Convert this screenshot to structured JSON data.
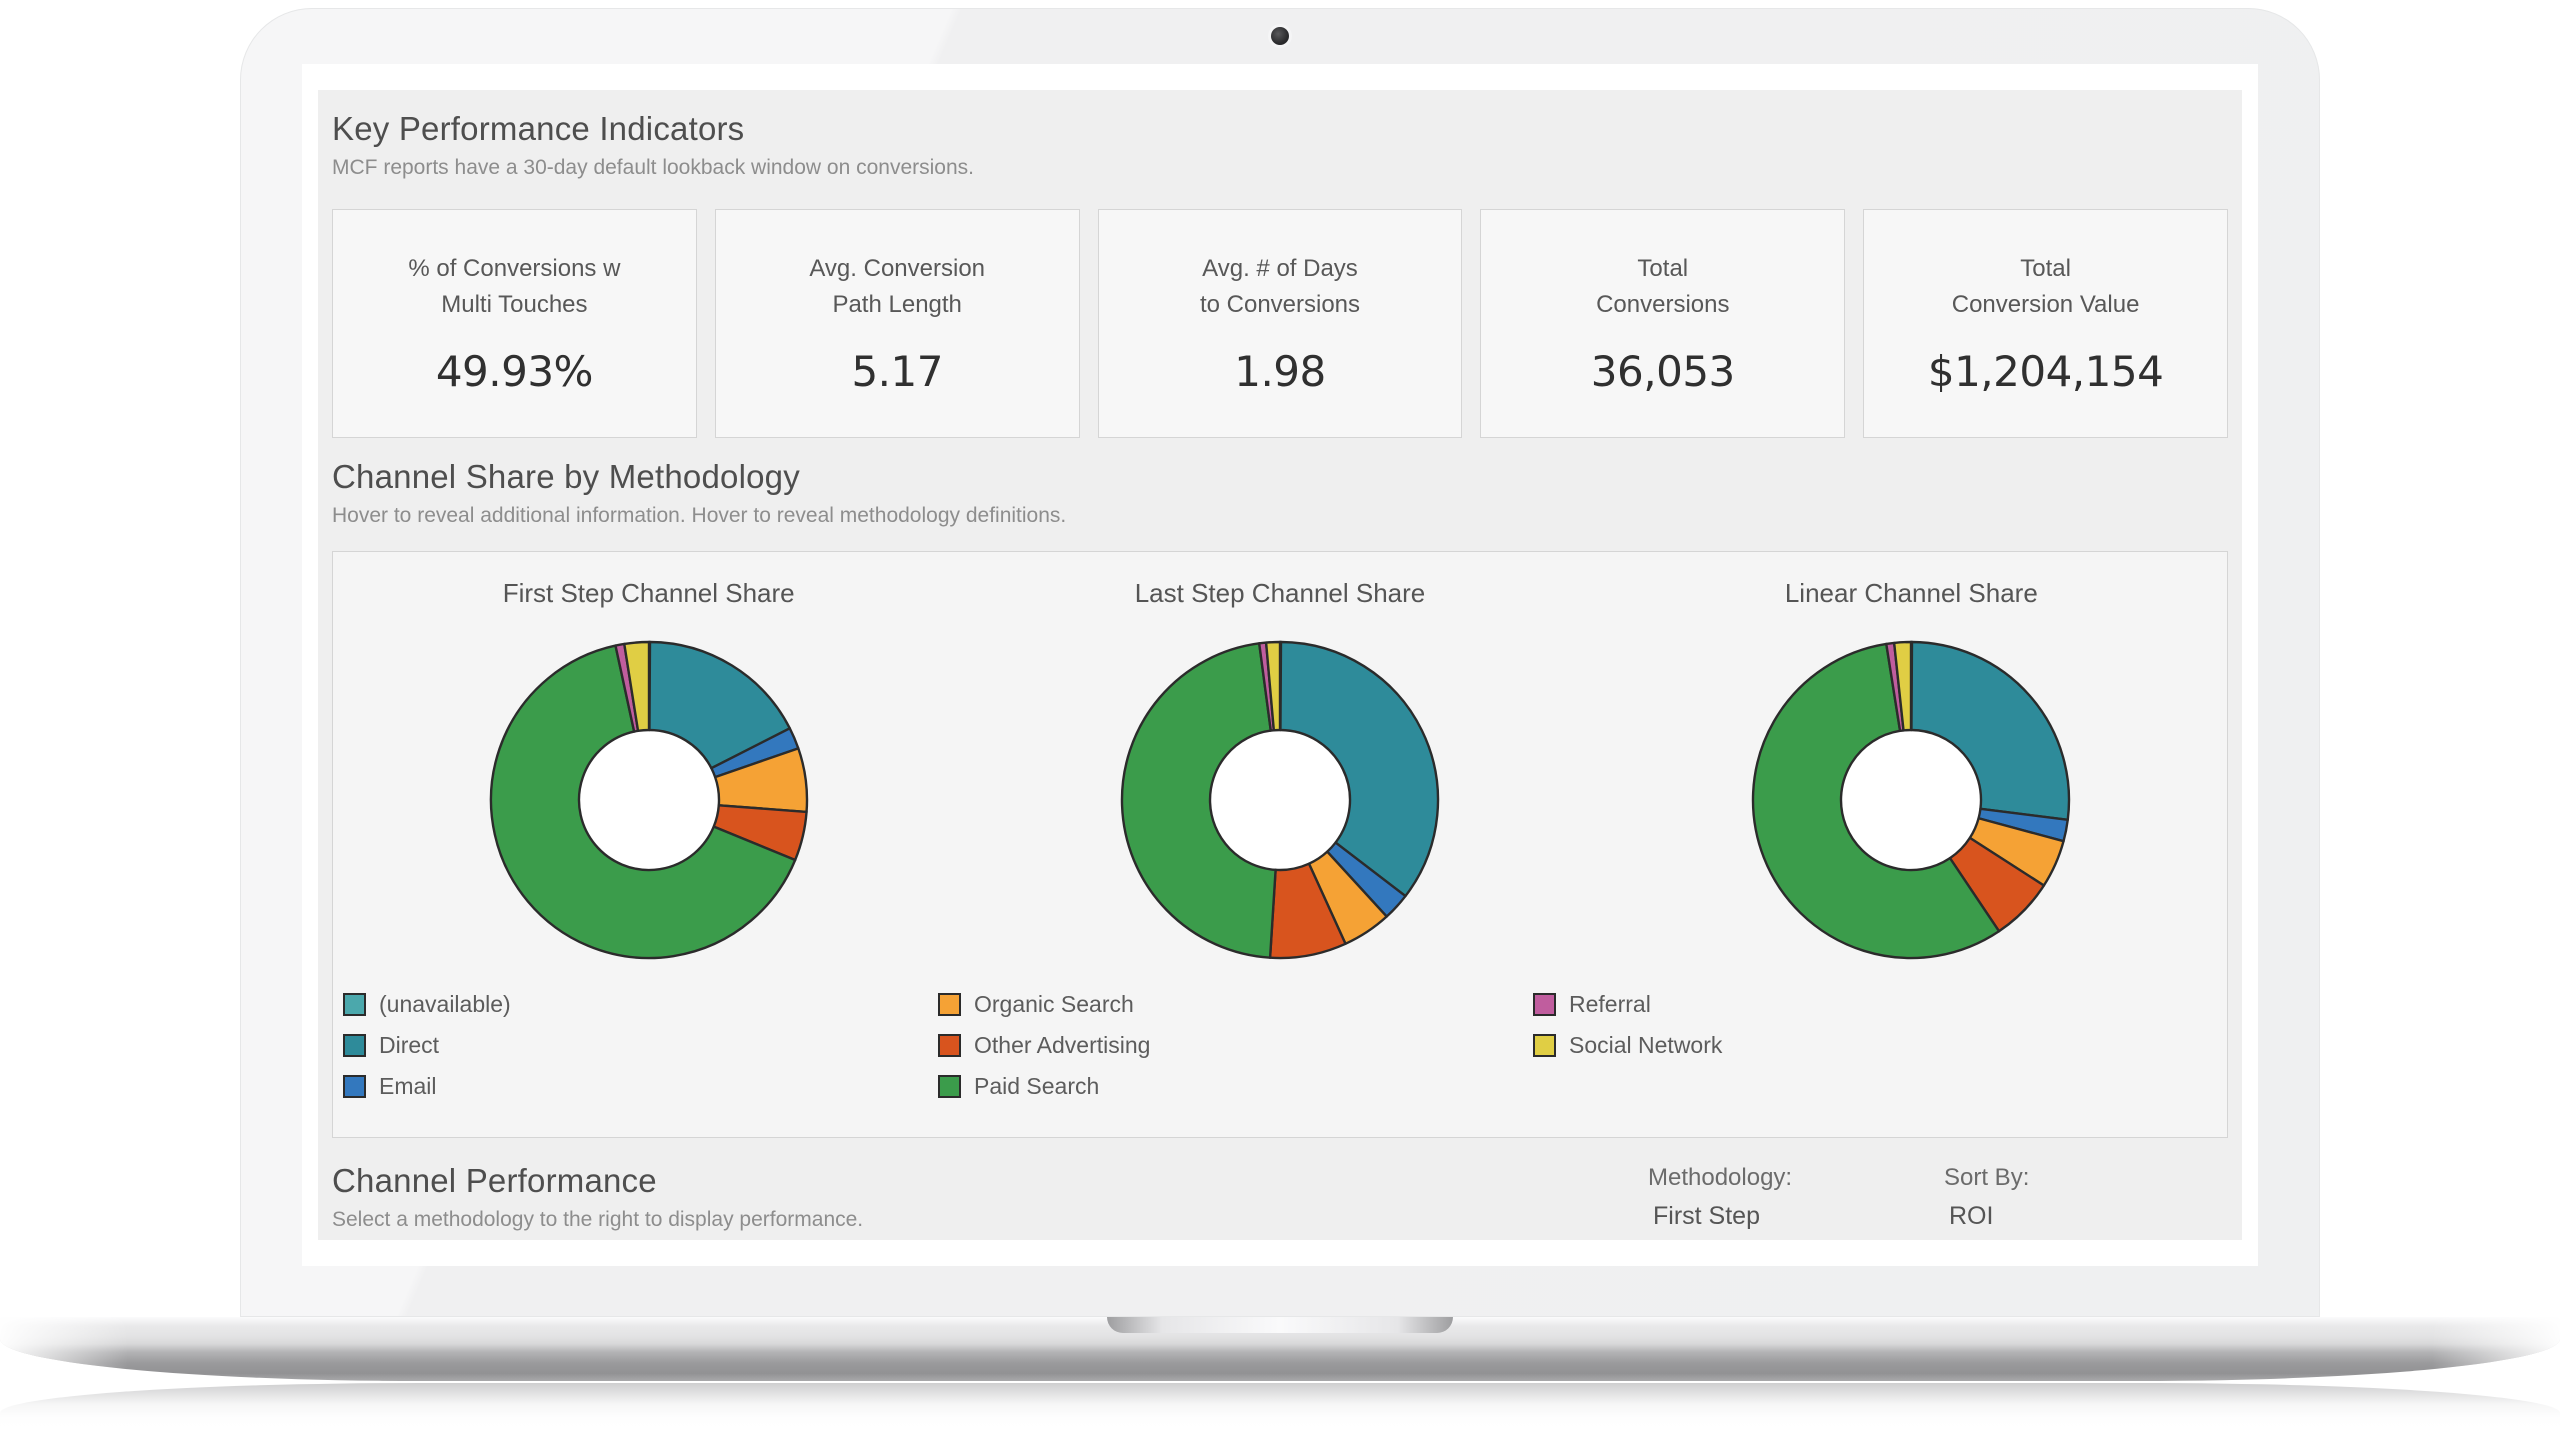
{
  "device": {
    "type": "laptop-mockup"
  },
  "kpi_section": {
    "title": "Key Performance Indicators",
    "subtitle": "MCF reports have a 30-day default lookback window on conversions."
  },
  "kpis": [
    {
      "label_line1": "% of Conversions w",
      "label_line2": "Multi Touches",
      "value": "49.93%"
    },
    {
      "label_line1": "Avg. Conversion",
      "label_line2": "Path Length",
      "value": "5.17"
    },
    {
      "label_line1": "Avg. # of Days",
      "label_line2": "to Conversions",
      "value": "1.98"
    },
    {
      "label_line1": "Total",
      "label_line2": "Conversions",
      "value": "36,053"
    },
    {
      "label_line1": "Total",
      "label_line2": "Conversion Value",
      "value": "$1,204,154"
    }
  ],
  "channel_share_section": {
    "title": "Channel Share by Methodology",
    "subtitle": "Hover to reveal additional information. Hover to reveal methodology definitions."
  },
  "palette": {
    "(unavailable)": "#4BA8AC",
    "Direct": "#2E8B9A",
    "Email": "#3378BE",
    "Organic Search": "#F5A235",
    "Other Advertising": "#D8541E",
    "Paid Search": "#3B9C4B",
    "Referral": "#C05D9E",
    "Social Network": "#E0CE44",
    "slice_outline": "#2B2B2B"
  },
  "chart_data": [
    {
      "type": "pie",
      "title": "First Step Channel Share",
      "hole": 0.44,
      "start_angle_deg": 0,
      "direction": "clockwise",
      "labels": [
        "(unavailable)",
        "Direct",
        "Email",
        "Organic Search",
        "Other Advertising",
        "Paid Search",
        "Referral",
        "Social Network"
      ],
      "values_pct": [
        0.1,
        17.4,
        2.2,
        6.5,
        5.0,
        65.4,
        0.9,
        2.5
      ],
      "colors": [
        "#4BA8AC",
        "#2E8B9A",
        "#3378BE",
        "#F5A235",
        "#D8541E",
        "#3B9C4B",
        "#C05D9E",
        "#E0CE44"
      ]
    },
    {
      "type": "pie",
      "title": "Last Step Channel Share",
      "hole": 0.44,
      "start_angle_deg": 0,
      "direction": "clockwise",
      "labels": [
        "(unavailable)",
        "Direct",
        "Email",
        "Organic Search",
        "Other Advertising",
        "Paid Search",
        "Referral",
        "Social Network"
      ],
      "values_pct": [
        0.1,
        35.3,
        2.8,
        5.0,
        7.8,
        46.9,
        0.7,
        1.4
      ],
      "colors": [
        "#4BA8AC",
        "#2E8B9A",
        "#3378BE",
        "#F5A235",
        "#D8541E",
        "#3B9C4B",
        "#C05D9E",
        "#E0CE44"
      ]
    },
    {
      "type": "pie",
      "title": "Linear Channel Share",
      "hole": 0.44,
      "start_angle_deg": 0,
      "direction": "clockwise",
      "labels": [
        "(unavailable)",
        "Direct",
        "Email",
        "Organic Search",
        "Other Advertising",
        "Paid Search",
        "Referral",
        "Social Network"
      ],
      "values_pct": [
        0.1,
        26.9,
        2.2,
        4.9,
        6.5,
        56.9,
        0.8,
        1.7
      ],
      "colors": [
        "#4BA8AC",
        "#2E8B9A",
        "#3378BE",
        "#F5A235",
        "#D8541E",
        "#3B9C4B",
        "#C05D9E",
        "#E0CE44"
      ]
    }
  ],
  "legend": {
    "position": "bottom-left",
    "columns": [
      [
        {
          "label": "(unavailable)",
          "color": "#4BA8AC"
        },
        {
          "label": "Direct",
          "color": "#2E8B9A"
        },
        {
          "label": "Email",
          "color": "#3378BE"
        }
      ],
      [
        {
          "label": "Organic Search",
          "color": "#F5A235"
        },
        {
          "label": "Other Advertising",
          "color": "#D8541E"
        },
        {
          "label": "Paid Search",
          "color": "#3B9C4B"
        }
      ],
      [
        {
          "label": "Referral",
          "color": "#C05D9E"
        },
        {
          "label": "Social Network",
          "color": "#E0CE44"
        }
      ]
    ]
  },
  "channel_performance_section": {
    "title": "Channel Performance",
    "subtitle": "Select a methodology to the right to display performance.",
    "methodology_label": "Methodology:",
    "methodology_value": "First Step",
    "sort_label": "Sort By:",
    "sort_value": "ROI"
  }
}
